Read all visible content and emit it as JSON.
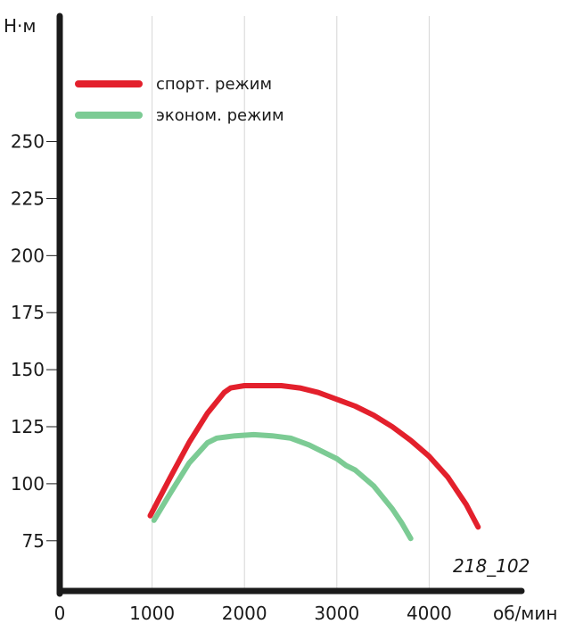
{
  "chart_data": {
    "type": "line",
    "xlabel": "об/мин",
    "ylabel": "Н·м",
    "x_ticks": [
      0,
      1000,
      2000,
      3000,
      4000
    ],
    "y_ticks": [
      75,
      100,
      125,
      150,
      175,
      200,
      225,
      250
    ],
    "xlim": [
      0,
      5000
    ],
    "ylim": [
      53,
      305
    ],
    "grid": "vertical",
    "legend_position": "top-left",
    "figure_code": "218_102",
    "series": [
      {
        "name": "спорт. режим",
        "color": "#e3202c",
        "x": [
          980,
          1200,
          1400,
          1600,
          1780,
          1850,
          2000,
          2200,
          2400,
          2600,
          2800,
          3000,
          3200,
          3400,
          3600,
          3800,
          4000,
          4200,
          4400,
          4530
        ],
        "y": [
          86,
          103,
          118,
          131,
          140,
          142,
          143,
          143,
          143,
          142,
          140,
          137,
          134,
          130,
          125,
          119,
          112,
          103,
          91,
          81
        ]
      },
      {
        "name": "эконом. режим",
        "color": "#7ccb94",
        "x": [
          1020,
          1200,
          1400,
          1600,
          1700,
          1900,
          2100,
          2300,
          2500,
          2700,
          2900,
          3000,
          3100,
          3200,
          3400,
          3600,
          3700,
          3800
        ],
        "y": [
          84,
          96,
          109,
          118,
          120,
          121,
          121.5,
          121,
          120,
          117,
          113,
          111,
          108,
          106,
          99,
          89,
          83,
          76
        ]
      }
    ]
  }
}
